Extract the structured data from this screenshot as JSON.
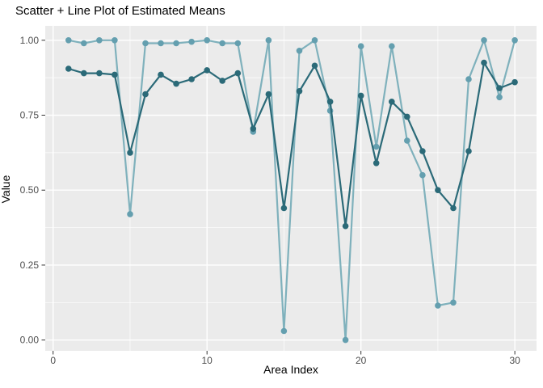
{
  "chart_data": {
    "type": "line",
    "title": "Scatter + Line Plot of Estimated Means",
    "xlabel": "Area Index",
    "ylabel": "Value",
    "x": [
      1,
      2,
      3,
      4,
      5,
      6,
      7,
      8,
      9,
      10,
      11,
      12,
      13,
      14,
      15,
      16,
      17,
      18,
      19,
      20,
      21,
      22,
      23,
      24,
      25,
      26,
      27,
      28,
      29,
      30
    ],
    "series": [
      {
        "name": "light-teal-series",
        "line_color": "#7FB1BC",
        "point_color": "#649FAF",
        "values": [
          1.0,
          0.99,
          1.0,
          1.0,
          0.42,
          0.99,
          0.99,
          0.99,
          0.995,
          1.0,
          0.99,
          0.99,
          0.695,
          1.0,
          0.03,
          0.965,
          1.0,
          0.765,
          0.0,
          0.98,
          0.645,
          0.98,
          0.665,
          0.55,
          0.115,
          0.125,
          0.87,
          1.0,
          0.81,
          1.0
        ]
      },
      {
        "name": "dark-teal-series",
        "line_color": "#2B6A78",
        "point_color": "#2B6A78",
        "values": [
          0.905,
          0.89,
          0.89,
          0.885,
          0.625,
          0.82,
          0.885,
          0.855,
          0.87,
          0.9,
          0.865,
          0.89,
          0.705,
          0.82,
          0.44,
          0.83,
          0.915,
          0.795,
          0.38,
          0.815,
          0.59,
          0.795,
          0.745,
          0.63,
          0.5,
          0.44,
          0.63,
          0.925,
          0.84,
          0.86
        ]
      }
    ],
    "x_ticks": [
      0,
      10,
      20,
      30
    ],
    "x_tick_labels": [
      "0",
      "10",
      "20",
      "30"
    ],
    "y_ticks": [
      0,
      0.25,
      0.5,
      0.75,
      1
    ],
    "y_tick_labels": [
      "0.00",
      "0.25",
      "0.50",
      "0.75",
      "1.00"
    ],
    "x_minor_ticks": [
      5,
      15,
      25
    ],
    "y_minor_ticks": [
      0.125,
      0.375,
      0.625,
      0.875
    ],
    "xlim": [
      -0.51,
      31.41
    ],
    "ylim": [
      -0.036,
      1.048
    ],
    "grid": true,
    "legend": false,
    "panel_bg": "#EBEBEB",
    "grid_color": "#FFFFFF",
    "tick_label_color": "#4D4D4D",
    "tick_mark_color": "#333333"
  }
}
